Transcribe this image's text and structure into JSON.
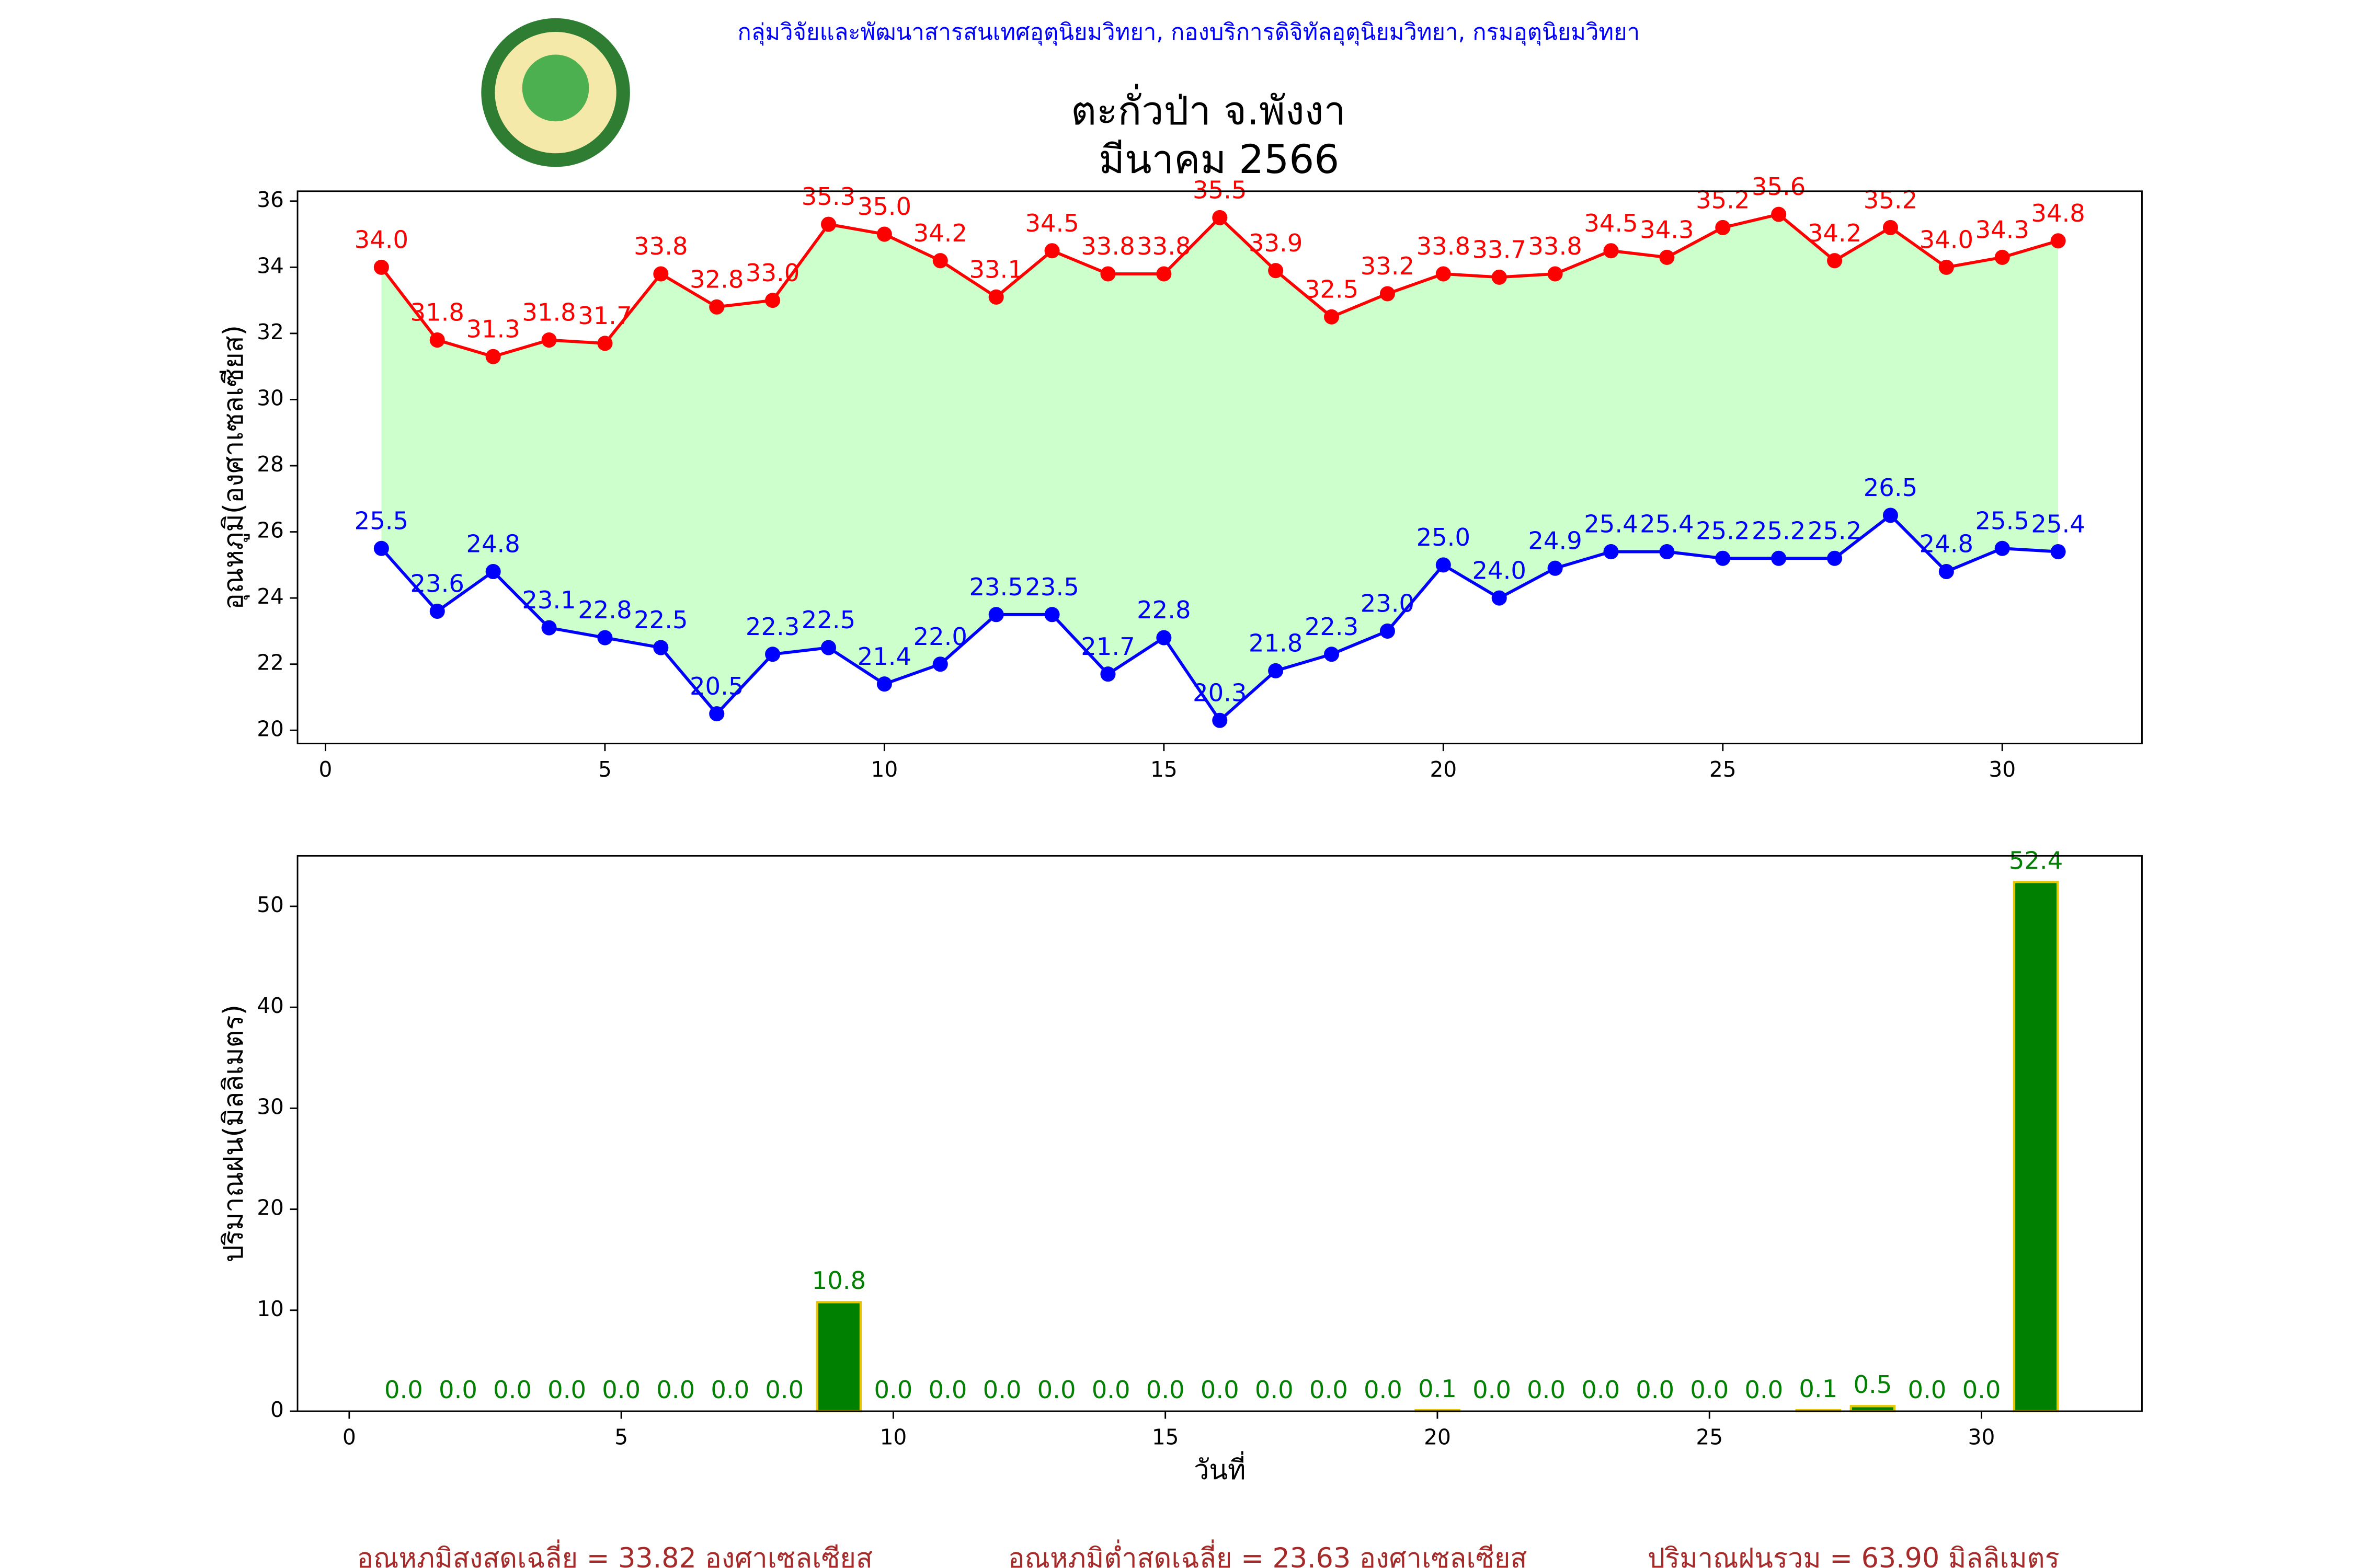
{
  "header": "กลุ่มวิจัยและพัฒนาสารสนเทศอุตุนิยมวิทยา, กองบริการดิจิทัลอุตุนิยมวิทยา, กรมอุตุนิยมวิทยา",
  "footer": [
    "อุณหภูมิสูงสุดเฉลี่ย = 33.82 องศาเซลเซียส",
    "อุณหภูมิต่ำสุดเฉลี่ย = 23.63 องศาเซลเซียส",
    "ปริมาณฝนรวม = 63.90 มิลลิเมตร"
  ],
  "chart_data": [
    {
      "type": "line",
      "title": [
        "ตะกั่วป่า จ.พังงา",
        "มีนาคม 2566"
      ],
      "ylabel": "อุณหภูมิ(องศาเซลเซียส)",
      "fill_color": "#ccffcc",
      "x": [
        1,
        2,
        3,
        4,
        5,
        6,
        7,
        8,
        9,
        10,
        11,
        12,
        13,
        14,
        15,
        16,
        17,
        18,
        19,
        20,
        21,
        22,
        23,
        24,
        25,
        26,
        27,
        28,
        29,
        30,
        31
      ],
      "series": [
        {
          "name": "max",
          "color": "#ff0000",
          "values": [
            34.0,
            31.8,
            31.3,
            31.8,
            31.7,
            33.8,
            32.8,
            33.0,
            35.3,
            35.0,
            34.2,
            33.1,
            34.5,
            33.8,
            33.8,
            35.5,
            33.9,
            32.5,
            33.2,
            33.8,
            33.7,
            33.8,
            34.5,
            34.3,
            35.2,
            35.6,
            34.2,
            35.2,
            34.0,
            34.3,
            34.8
          ],
          "value_labels": [
            "34.0",
            "31.8",
            "31.3",
            "31.8",
            "31.7",
            "33.8",
            "32.8",
            "33.0",
            "35.3",
            "35.0",
            "34.2",
            "33.1",
            "34.5",
            "33.8",
            "33.8",
            "35.5",
            "33.9",
            "32.5",
            "33.2",
            "33.8",
            "33.7",
            "33.8",
            "34.5",
            "34.3",
            "35.2",
            "35.6",
            "34.2",
            "35.2",
            "34.0",
            "34.3",
            "34.8"
          ]
        },
        {
          "name": "min",
          "color": "#0000ff",
          "values": [
            25.5,
            23.6,
            24.8,
            23.1,
            22.8,
            22.5,
            20.5,
            22.3,
            22.5,
            21.4,
            22.0,
            23.5,
            23.5,
            21.7,
            22.8,
            20.3,
            21.8,
            22.3,
            23.0,
            25.0,
            24.0,
            24.9,
            25.4,
            25.4,
            25.2,
            25.2,
            25.2,
            26.5,
            24.8,
            25.5,
            25.4
          ],
          "value_labels": [
            "25.5",
            "23.6",
            "24.8",
            "23.1",
            "22.8",
            "22.5",
            "20.5",
            "22.3",
            "22.5",
            "21.4",
            "22.0",
            "23.5",
            "23.5",
            "21.7",
            "22.8",
            "20.3",
            "21.8",
            "22.3",
            "23.0",
            "25.0",
            "24.0",
            "24.9",
            "25.4",
            "25.4",
            "25.2",
            "25.2",
            "25.2",
            "26.5",
            "24.8",
            "25.5",
            "25.4"
          ]
        }
      ],
      "xlim": [
        -0.5,
        32.5
      ],
      "xticks": [
        0,
        5,
        10,
        15,
        20,
        25,
        30
      ],
      "ylim": [
        19.6,
        36.3
      ],
      "yticks": [
        20,
        22,
        24,
        26,
        28,
        30,
        32,
        34,
        36
      ]
    },
    {
      "type": "bar",
      "ylabel": "ปริมาณฝน(มิลลิเมตร)",
      "xlabel": "วันที่",
      "color": "#008000",
      "edge_color": "#e6c800",
      "label_color": "#008000",
      "x": [
        1,
        2,
        3,
        4,
        5,
        6,
        7,
        8,
        9,
        10,
        11,
        12,
        13,
        14,
        15,
        16,
        17,
        18,
        19,
        20,
        21,
        22,
        23,
        24,
        25,
        26,
        27,
        28,
        29,
        30,
        31
      ],
      "values": [
        0,
        0,
        0,
        0,
        0,
        0,
        0,
        0,
        10.8,
        0,
        0,
        0,
        0,
        0,
        0,
        0,
        0,
        0,
        0,
        0.1,
        0,
        0,
        0,
        0,
        0,
        0,
        0.1,
        0.5,
        0,
        0,
        52.4
      ],
      "value_labels": [
        "0.0",
        "0.0",
        "0.0",
        "0.0",
        "0.0",
        "0.0",
        "0.0",
        "0.0",
        "10.8",
        "0.0",
        "0.0",
        "0.0",
        "0.0",
        "0.0",
        "0.0",
        "0.0",
        "0.0",
        "0.0",
        "0.0",
        "0.1",
        "0.0",
        "0.0",
        "0.0",
        "0.0",
        "0.0",
        "0.0",
        "0.1",
        "0.5",
        "0.0",
        "0.0",
        "52.4"
      ],
      "xlim": [
        -0.95,
        32.95
      ],
      "xticks": [
        0,
        5,
        10,
        15,
        20,
        25,
        30
      ],
      "ylim": [
        0,
        55
      ],
      "yticks": [
        0,
        10,
        20,
        30,
        40,
        50
      ]
    }
  ]
}
